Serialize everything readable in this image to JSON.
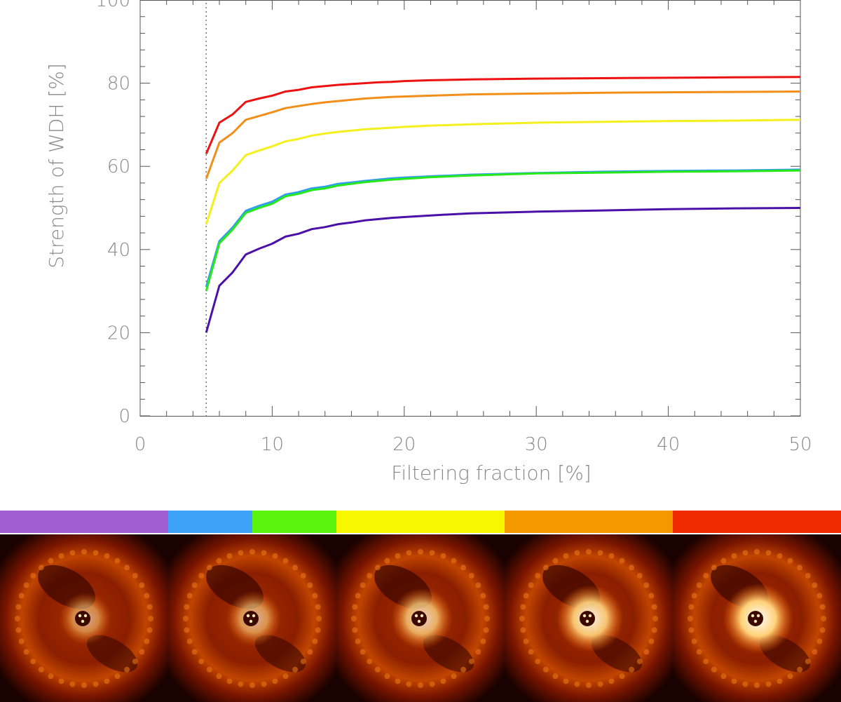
{
  "chart_data": {
    "type": "line",
    "xlabel": "Filtering fraction [%]",
    "ylabel": "Strength of WDH [%]",
    "xlim": [
      0,
      50
    ],
    "ylim": [
      0,
      100
    ],
    "xticks": [
      "0",
      "10",
      "20",
      "30",
      "40",
      "50"
    ],
    "yticks": [
      "0",
      "20",
      "40",
      "60",
      "80",
      "100"
    ],
    "vline_x": 5,
    "x": [
      5,
      6,
      7,
      8,
      9,
      10,
      11,
      12,
      13,
      14,
      15,
      16,
      17,
      18,
      19,
      20,
      22,
      25,
      30,
      35,
      40,
      45,
      50
    ],
    "series": [
      {
        "color": "#ee1111",
        "values": [
          63,
          70.5,
          72.5,
          75.5,
          76.3,
          77.0,
          78.0,
          78.4,
          79.0,
          79.3,
          79.6,
          79.8,
          80.0,
          80.2,
          80.3,
          80.5,
          80.7,
          80.9,
          81.1,
          81.2,
          81.3,
          81.4,
          81.5
        ]
      },
      {
        "color": "#f28f1a",
        "values": [
          57,
          65.7,
          68.0,
          71.2,
          72.1,
          73.0,
          74.0,
          74.5,
          75.0,
          75.4,
          75.7,
          76.0,
          76.3,
          76.5,
          76.7,
          76.8,
          77.0,
          77.3,
          77.5,
          77.7,
          77.8,
          77.9,
          78.0
        ]
      },
      {
        "color": "#f4f01e",
        "values": [
          46,
          56.0,
          59.0,
          62.7,
          63.8,
          64.8,
          66.0,
          66.6,
          67.4,
          67.9,
          68.3,
          68.6,
          68.9,
          69.1,
          69.3,
          69.5,
          69.8,
          70.1,
          70.5,
          70.7,
          70.9,
          71.0,
          71.2
        ]
      },
      {
        "color": "#2f9cf0",
        "values": [
          31,
          42.0,
          45.3,
          49.3,
          50.5,
          51.5,
          53.2,
          53.8,
          54.7,
          55.1,
          55.8,
          56.1,
          56.5,
          56.8,
          57.1,
          57.3,
          57.6,
          58.0,
          58.4,
          58.7,
          58.9,
          59.0,
          59.2
        ]
      },
      {
        "color": "#27e81a",
        "values": [
          30,
          41.5,
          44.8,
          48.8,
          50.0,
          51.0,
          52.8,
          53.4,
          54.3,
          54.7,
          55.4,
          55.8,
          56.2,
          56.5,
          56.8,
          57.0,
          57.4,
          57.8,
          58.3,
          58.5,
          58.7,
          58.8,
          59.0
        ]
      },
      {
        "color": "#4a10a8",
        "values": [
          20,
          31.3,
          34.5,
          38.8,
          40.2,
          41.4,
          43.1,
          43.8,
          44.9,
          45.4,
          46.1,
          46.5,
          47.0,
          47.3,
          47.6,
          47.8,
          48.2,
          48.7,
          49.1,
          49.4,
          49.7,
          49.9,
          50.0
        ]
      }
    ]
  },
  "color_strip": [
    "#a05ed2",
    "#3ea2f8",
    "#5af40f",
    "#f7f700",
    "#f59800",
    "#f02900"
  ],
  "panels": [
    "panel-1",
    "panel-2",
    "panel-3",
    "panel-4",
    "panel-5"
  ]
}
